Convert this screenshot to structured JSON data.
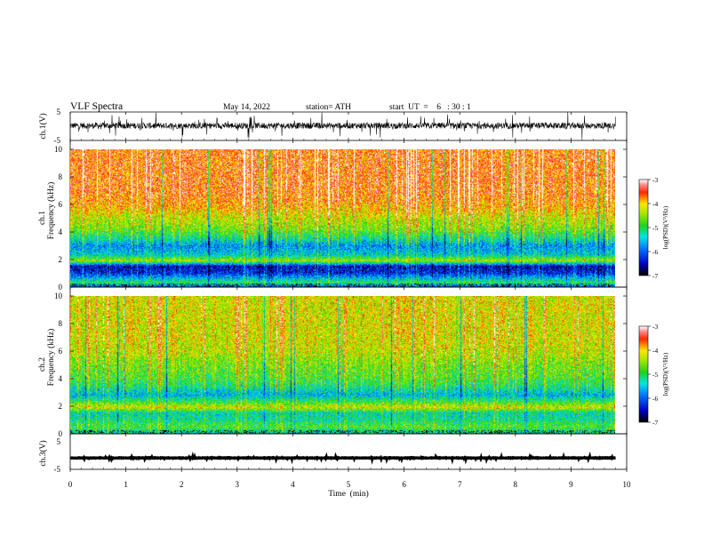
{
  "header": {
    "title": "VLF  Spectra",
    "date": "May 14, 2022",
    "station": "station= ATH",
    "start_ut": "start  UT  =    6   : 30 : 1"
  },
  "chart_data": [
    {
      "type": "line",
      "panel": "ch1-waveform",
      "ylabel": "ch.1(V)",
      "ylim": [
        -5,
        5
      ],
      "yticks": [
        "5",
        "-5"
      ],
      "x_range_min": [
        0,
        9.8
      ],
      "baseline_v": 0.2,
      "amplitude_v": 1.8,
      "color": "#000000"
    },
    {
      "type": "heatmap",
      "panel": "ch1-spectrogram",
      "ylabel": [
        "ch.1",
        "Frequency  (kHz)"
      ],
      "ylim": [
        0,
        10
      ],
      "yticks": [
        "0",
        "2",
        "4",
        "6",
        "8",
        "10"
      ],
      "x_range_min": [
        0,
        9.8
      ],
      "colorbar": {
        "label": "log(PSD)(V²/Hz)",
        "range": [
          -7,
          -3
        ],
        "ticks": [
          "-3",
          "-4",
          "-5",
          "-6",
          "-7"
        ]
      },
      "profile_khz_log_psd": [
        [
          0,
          -6.0
        ],
        [
          0.3,
          -5.0
        ],
        [
          0.6,
          -5.6
        ],
        [
          1.0,
          -6.3
        ],
        [
          1.5,
          -6.5
        ],
        [
          1.9,
          -4.4
        ],
        [
          2.3,
          -5.4
        ],
        [
          3.0,
          -5.8
        ],
        [
          3.5,
          -5.2
        ],
        [
          4.2,
          -4.6
        ],
        [
          5.0,
          -4.3
        ],
        [
          6.0,
          -3.8
        ],
        [
          7.0,
          -3.6
        ],
        [
          8.0,
          -3.6
        ],
        [
          10.0,
          -3.6
        ]
      ]
    },
    {
      "type": "heatmap",
      "panel": "ch2-spectrogram",
      "ylabel": [
        "ch.2",
        "Frequency  (kHz)"
      ],
      "ylim": [
        0,
        10
      ],
      "yticks": [
        "0",
        "2",
        "4",
        "6",
        "8",
        "10"
      ],
      "x_range_min": [
        0,
        9.8
      ],
      "colorbar": {
        "label": "log(PSD)(V²/Hz)",
        "range": [
          -7,
          -3
        ],
        "ticks": [
          "-3",
          "-4",
          "-5",
          "-6",
          "-7"
        ]
      },
      "profile_khz_log_psd": [
        [
          0,
          -5.3
        ],
        [
          0.5,
          -4.8
        ],
        [
          1.0,
          -5.2
        ],
        [
          1.5,
          -5.3
        ],
        [
          1.9,
          -4.2
        ],
        [
          2.3,
          -4.9
        ],
        [
          2.8,
          -5.6
        ],
        [
          3.4,
          -5.1
        ],
        [
          4.0,
          -4.8
        ],
        [
          5.0,
          -4.6
        ],
        [
          6.0,
          -4.3
        ],
        [
          7.0,
          -4.2
        ],
        [
          8.0,
          -4.2
        ],
        [
          10.0,
          -4.2
        ]
      ]
    },
    {
      "type": "line",
      "panel": "ch3-waveform",
      "ylabel": "ch.3(V)",
      "ylim": [
        -5,
        5
      ],
      "yticks": [
        "5",
        "-5"
      ],
      "x_range_min": [
        0,
        9.8
      ],
      "baseline_v": -1.8,
      "amplitude_v": 0.2,
      "color": "#000000"
    }
  ],
  "x_axis": {
    "label": "Time  (min)",
    "xlim": [
      0,
      10
    ],
    "ticks": [
      "0",
      "1",
      "2",
      "3",
      "4",
      "5",
      "6",
      "7",
      "8",
      "9",
      "10"
    ]
  }
}
